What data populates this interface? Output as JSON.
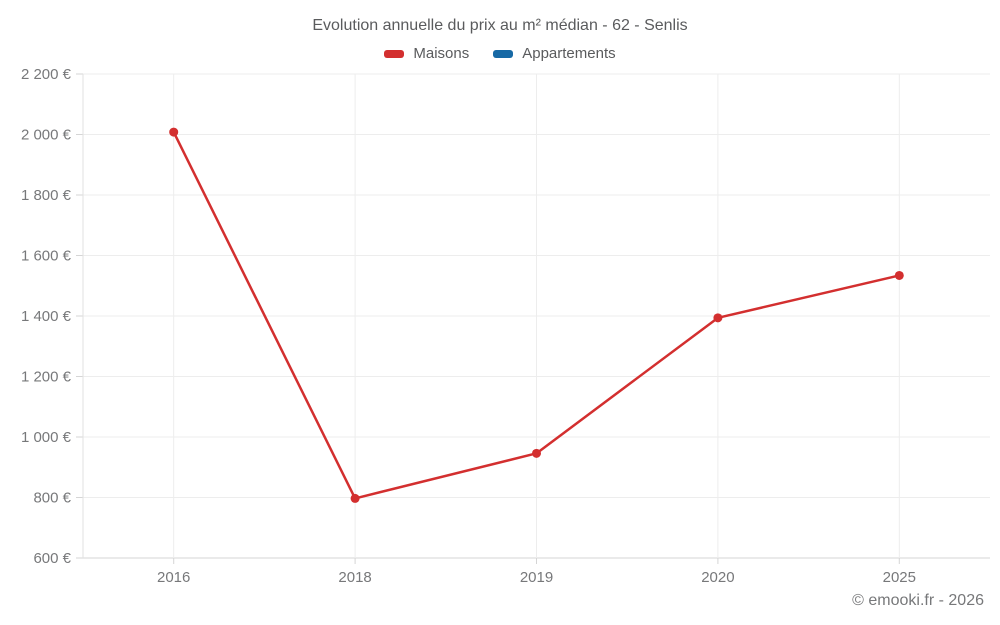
{
  "header": {
    "title": "Evolution annuelle du prix au m² médian - 62 - Senlis"
  },
  "legend": {
    "items": [
      {
        "label": "Maisons",
        "color": "#d32f2f"
      },
      {
        "label": "Appartements",
        "color": "#1769a5"
      }
    ]
  },
  "footer": {
    "credit": "© emooki.fr - 2026"
  },
  "chart_data": {
    "type": "line",
    "title": "Evolution annuelle du prix au m² médian - 62 - Senlis",
    "categories": [
      "2016",
      "2018",
      "2019",
      "2020",
      "2025"
    ],
    "series": [
      {
        "name": "Maisons",
        "color": "#d32f2f",
        "values": [
          2008,
          797,
          946,
          1394,
          1534
        ]
      },
      {
        "name": "Appartements",
        "color": "#1769a5",
        "values": []
      }
    ],
    "ylabel": "",
    "xlabel": "",
    "ylim": [
      600,
      2200
    ],
    "ytick_step": 200,
    "ytick_suffix": " €",
    "grid": true,
    "legend_position": "top",
    "annotations": [
      "© emooki.fr - 2026"
    ]
  }
}
